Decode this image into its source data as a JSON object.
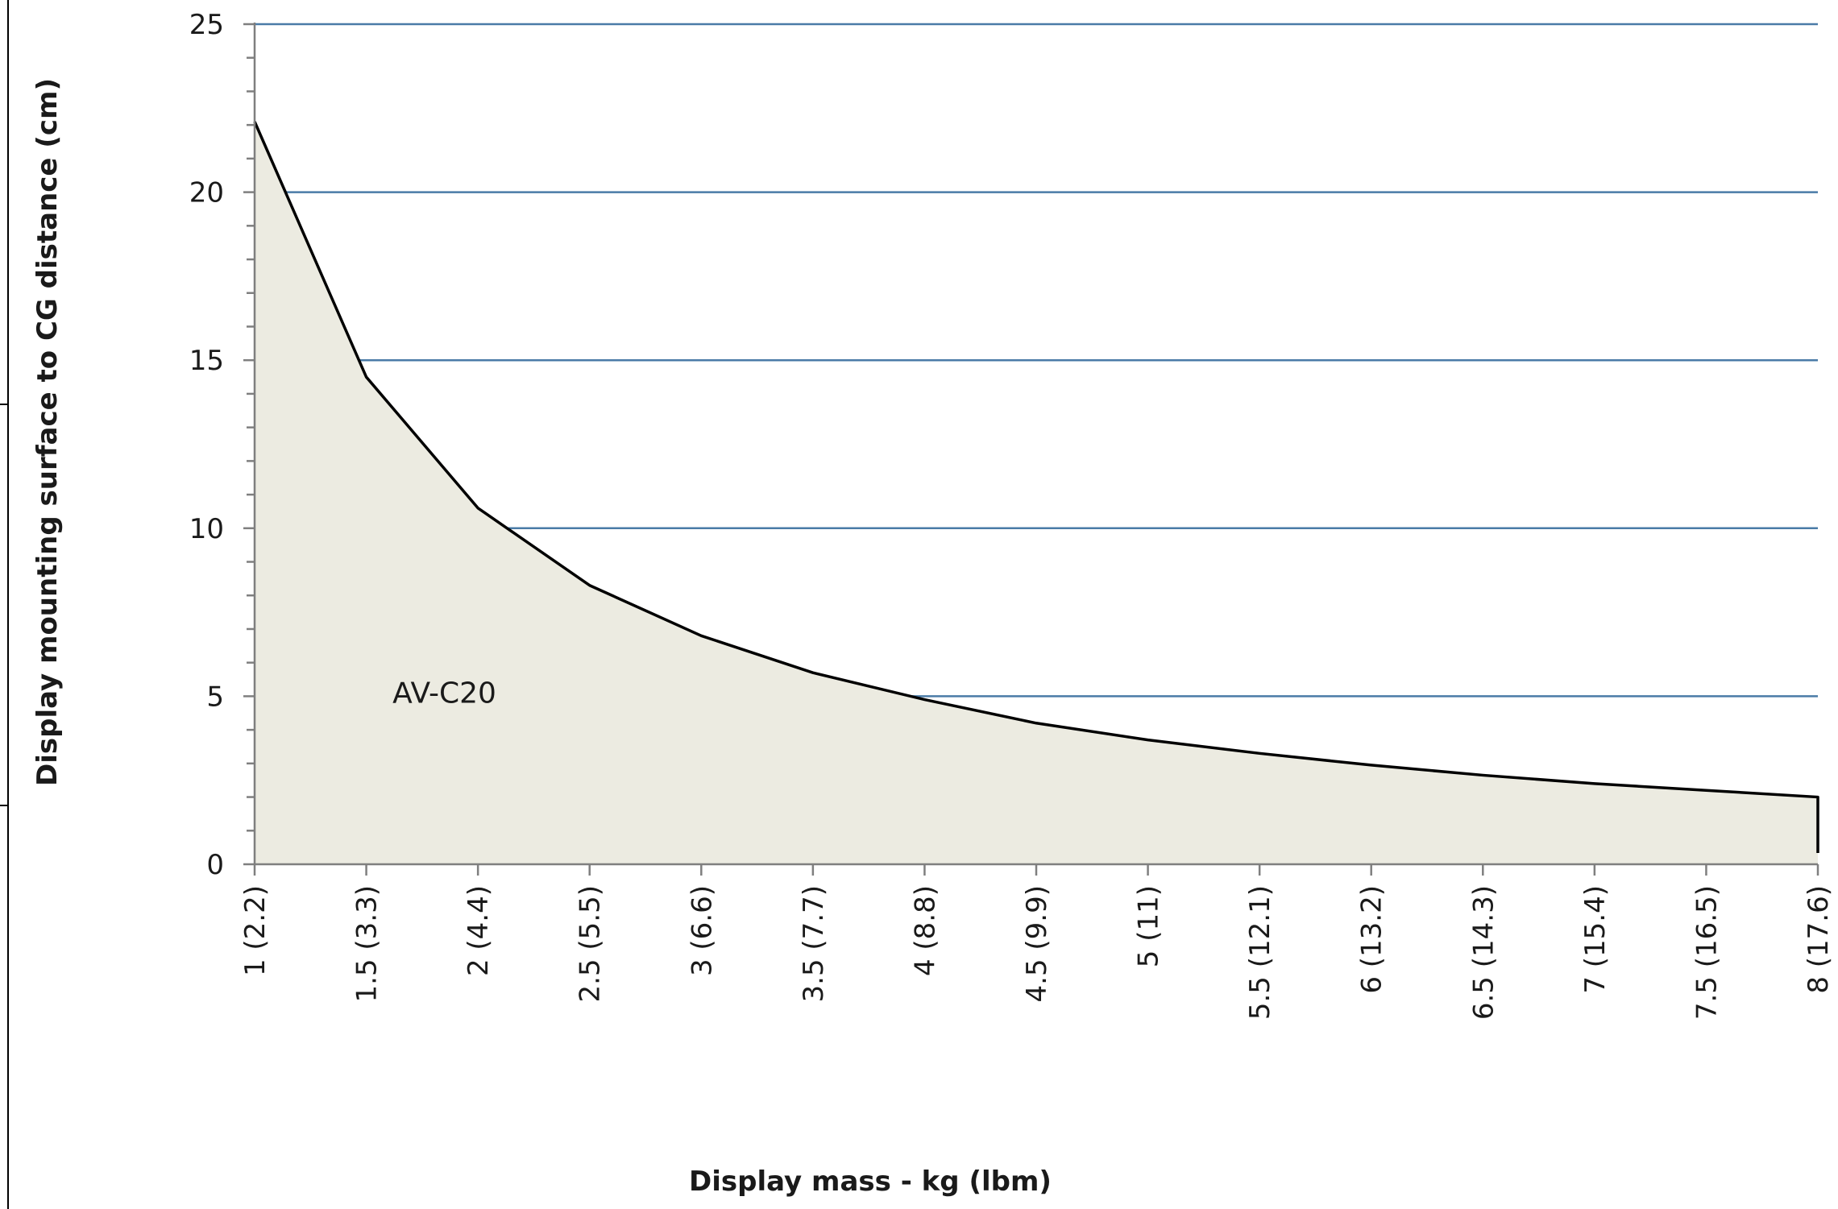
{
  "chart_data": {
    "type": "area",
    "title": "",
    "xlabel": "Display mass - kg (lbm)",
    "ylabel": "Display mounting surface to CG distance (cm)",
    "categories": [
      "1 (2.2)",
      "1.5 (3.3)",
      "2 (4.4)",
      "2.5 (5.5)",
      "3 (6.6)",
      "3.5 (7.7)",
      "4 (8.8)",
      "4.5 (9.9)",
      "5 (11)",
      "5.5 (12.1)",
      "6 (13.2)",
      "6.5 (14.3)",
      "7 (15.4)",
      "7.5 (16.5)",
      "8 (17.6)"
    ],
    "x": [
      1,
      1.5,
      2,
      2.5,
      3,
      3.5,
      4,
      4.5,
      5,
      5.5,
      6,
      6.5,
      7,
      7.5,
      8
    ],
    "series": [
      {
        "values": [
          22.1,
          14.5,
          10.6,
          8.3,
          6.8,
          5.7,
          4.9,
          4.2,
          3.7,
          3.3,
          2.95,
          2.65,
          2.4,
          2.2,
          2.0
        ]
      }
    ],
    "xlim": [
      1,
      8
    ],
    "ylim": [
      0,
      25
    ],
    "yticks": [
      "0",
      "5",
      "10",
      "15",
      "20",
      "25"
    ],
    "ytick_values": [
      0,
      5,
      10,
      15,
      20,
      25
    ],
    "minor_ytick_step": 1,
    "grid": "horizontal major lines",
    "legend": "none",
    "annotations": [
      {
        "text": "AV-C20",
        "x": 1.85,
        "y": 4.8
      }
    ],
    "colors": {
      "fill": "#ecebe1",
      "line": "#000000",
      "grid": "#4a7ba7",
      "axis": "#7f7f7f"
    }
  }
}
